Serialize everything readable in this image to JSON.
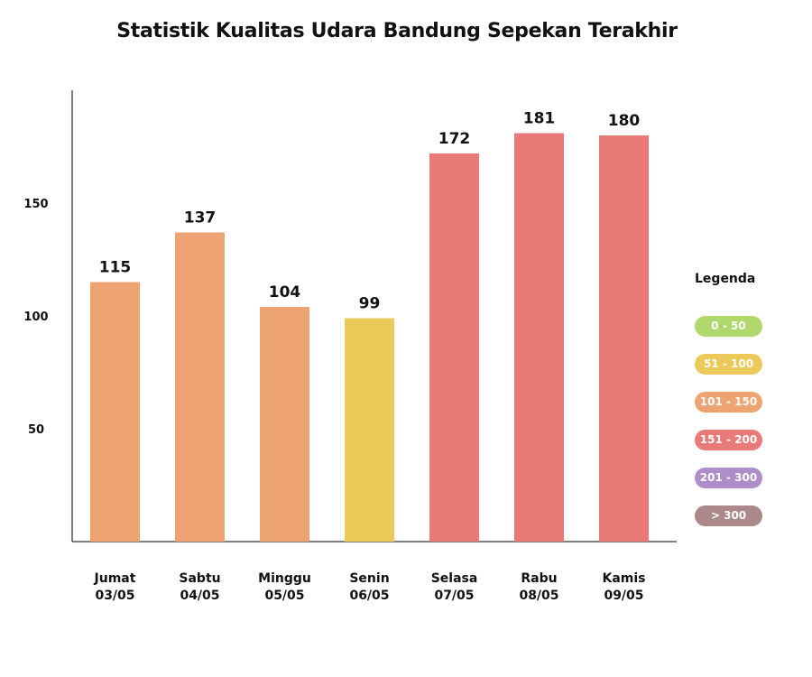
{
  "title": "Statistik Kualitas Udara Bandung Sepekan Terakhir",
  "legend": {
    "title": "Legenda",
    "items": [
      {
        "label": "0 - 50",
        "color": "#b1d86d"
      },
      {
        "label": "51 - 100",
        "color": "#ecca5a"
      },
      {
        "label": "101 - 150",
        "color": "#eea472"
      },
      {
        "label": "151 - 200",
        "color": "#e97a77"
      },
      {
        "label": "201 - 300",
        "color": "#ad8ec9"
      },
      {
        "label": "> 300",
        "color": "#ab888a"
      }
    ]
  },
  "chart_data": {
    "type": "bar",
    "title": "Statistik Kualitas Udara Bandung Sepekan Terakhir",
    "categories": [
      [
        "Jumat",
        "03/05"
      ],
      [
        "Sabtu",
        "04/05"
      ],
      [
        "Minggu",
        "05/05"
      ],
      [
        "Senin",
        "06/05"
      ],
      [
        "Selasa",
        "07/05"
      ],
      [
        "Rabu",
        "08/05"
      ],
      [
        "Kamis",
        "09/05"
      ]
    ],
    "values": [
      115,
      137,
      104,
      99,
      172,
      181,
      180
    ],
    "bar_colors": [
      "#eea472",
      "#eea472",
      "#eea472",
      "#ecca5a",
      "#e97a77",
      "#e97a77",
      "#e97a77"
    ],
    "y_ticks": [
      50,
      100,
      150
    ],
    "ylim": [
      0,
      200
    ],
    "grid": false,
    "legend_position": "right"
  }
}
